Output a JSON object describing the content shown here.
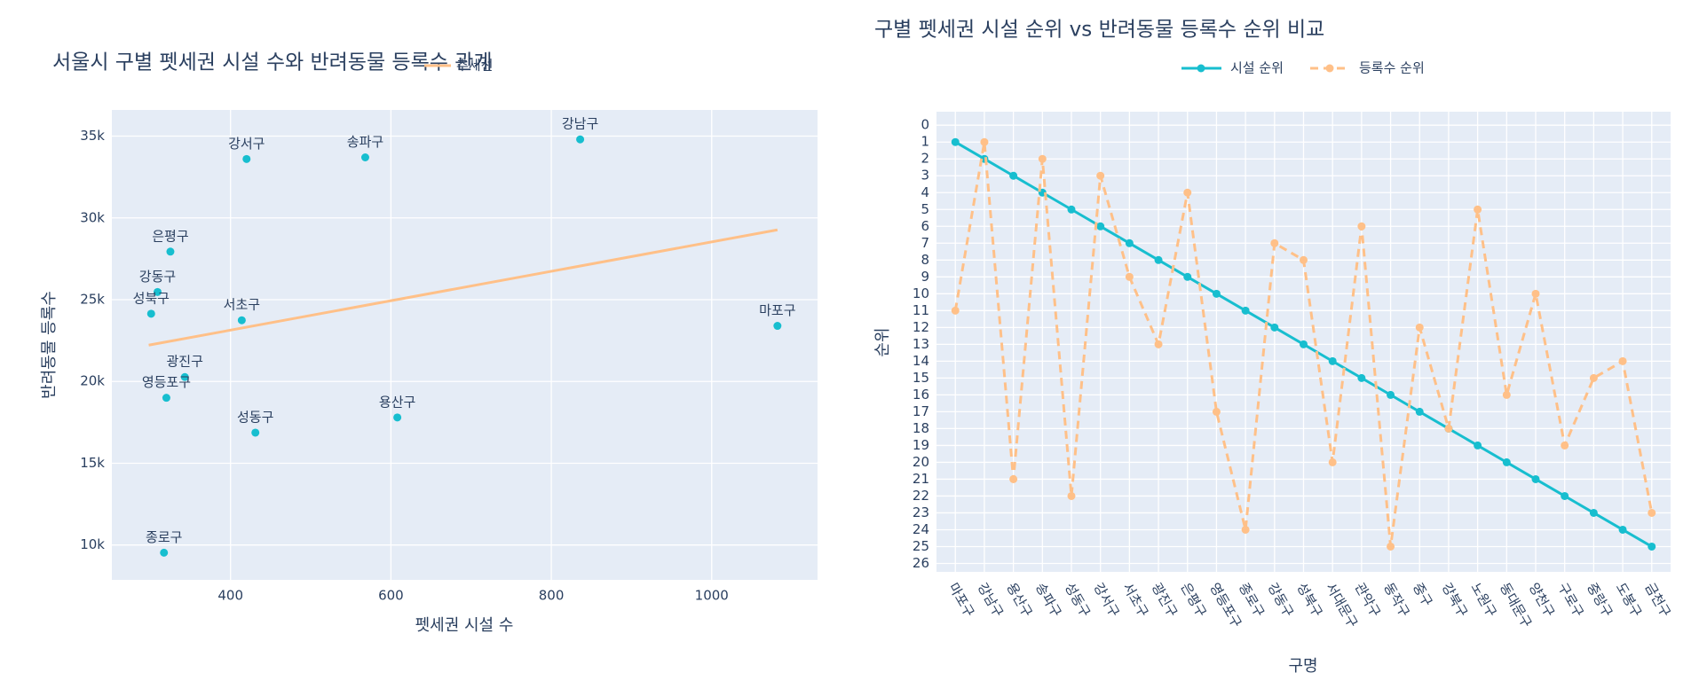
{
  "chart_data": [
    {
      "type": "scatter",
      "title": "서울시 구별 펫세권 시설 수와 반려동물 등록수 관계",
      "x_label": "펫세권 시설 수",
      "y_label": "반려동물 등록수",
      "labels": [
        "강남구",
        "강서구",
        "송파구",
        "은평구",
        "강동구",
        "성북구",
        "서초구",
        "마포구",
        "광진구",
        "영등포구",
        "성동구",
        "용산구",
        "종로구"
      ],
      "x": [
        836,
        420,
        568,
        325,
        309,
        301,
        414,
        1082,
        343,
        320,
        431,
        608,
        317
      ],
      "values": [
        34800,
        33600,
        33700,
        27940,
        25470,
        24140,
        23740,
        23400,
        20270,
        19000,
        16870,
        17800,
        9530
      ],
      "color": "#17becf",
      "trendline": {
        "name": "추세선",
        "color": "#ffc088",
        "x": [
          298,
          1082
        ],
        "values": [
          22220,
          29270
        ]
      },
      "xlim": [
        252,
        1132
      ],
      "xticks": [
        400,
        600,
        800,
        1000
      ],
      "ylim": [
        7870,
        36600
      ],
      "yticks": [
        {
          "value": 10000,
          "label": "10k"
        },
        {
          "value": 15000,
          "label": "15k"
        },
        {
          "value": 20000,
          "label": "20k"
        },
        {
          "value": 25000,
          "label": "25k"
        },
        {
          "value": 30000,
          "label": "30k"
        },
        {
          "value": 35000,
          "label": "35k"
        }
      ],
      "grid": true
    },
    {
      "type": "line",
      "title": "구별 펫세권 시설 순위 vs 반려동물 등록수 순위 비교",
      "x_label": "구명",
      "y_label": "순위",
      "categories": [
        "마포구",
        "강남구",
        "용산구",
        "송파구",
        "성동구",
        "강서구",
        "서초구",
        "광진구",
        "은평구",
        "영등포구",
        "종로구",
        "강동구",
        "성북구",
        "서대문구",
        "관악구",
        "동작구",
        "중구",
        "강북구",
        "노원구",
        "동대문구",
        "양천구",
        "구로구",
        "중랑구",
        "도봉구",
        "금천구"
      ],
      "series": [
        {
          "name": "시설 순위",
          "color": "#17becf",
          "dash": "solid",
          "values": [
            1,
            2,
            3,
            4,
            5,
            6,
            7,
            8,
            9,
            10,
            11,
            12,
            13,
            14,
            15,
            16,
            17,
            18,
            19,
            20,
            21,
            22,
            23,
            24,
            25
          ]
        },
        {
          "name": "등록수 순위",
          "color": "#ffc088",
          "dash": "dash",
          "values": [
            11,
            1,
            21,
            2,
            22,
            3,
            9,
            13,
            4,
            17,
            24,
            7,
            8,
            20,
            6,
            25,
            12,
            18,
            5,
            16,
            10,
            19,
            15,
            14,
            23
          ]
        }
      ],
      "ylim": [
        -0.8,
        26.5
      ],
      "y_reversed": true,
      "yticks": [
        0,
        1,
        2,
        3,
        4,
        5,
        6,
        7,
        8,
        9,
        10,
        11,
        12,
        13,
        14,
        15,
        16,
        17,
        18,
        19,
        20,
        21,
        22,
        23,
        24,
        25,
        26
      ],
      "grid": true,
      "legend": "top"
    }
  ]
}
